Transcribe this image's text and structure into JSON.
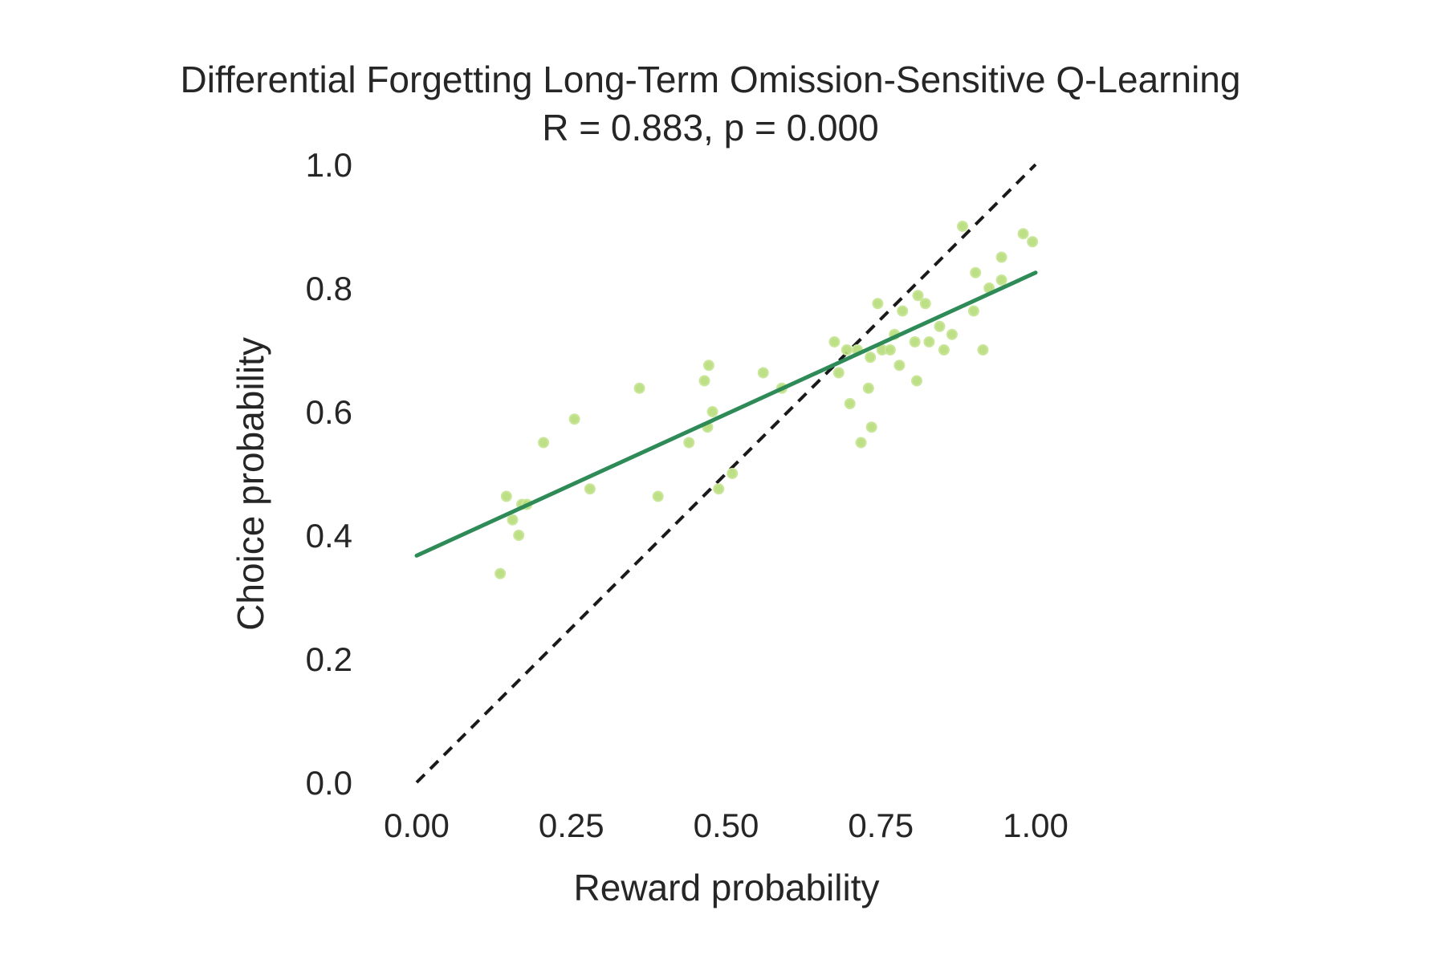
{
  "chart_data": {
    "type": "scatter",
    "title": "Differential Forgetting Long-Term Omission-Sensitive Q-Learning",
    "subtitle": "R = 0.883, p = 0.000",
    "xlabel": "Reward probability",
    "ylabel": "Choice probability",
    "xlim": [
      0,
      1
    ],
    "ylim": [
      0,
      1
    ],
    "grid": false,
    "x_ticks": [
      "0.00",
      "0.25",
      "0.50",
      "0.75",
      "1.00"
    ],
    "y_ticks": [
      "0.0",
      "0.2",
      "0.4",
      "0.6",
      "0.8",
      "1.0"
    ],
    "identity_line": {
      "x": [
        0,
        1
      ],
      "y": [
        0,
        1
      ],
      "style": "dashed",
      "color": "#1a1a1a"
    },
    "regression_line": {
      "x": [
        0,
        1
      ],
      "y": [
        0.367,
        0.825
      ],
      "color": "#2e8b57"
    },
    "points_color": "#b6dc78",
    "points": [
      [
        0.135,
        0.338
      ],
      [
        0.145,
        0.463
      ],
      [
        0.155,
        0.425
      ],
      [
        0.165,
        0.4
      ],
      [
        0.17,
        0.45
      ],
      [
        0.178,
        0.45
      ],
      [
        0.205,
        0.55
      ],
      [
        0.255,
        0.588
      ],
      [
        0.28,
        0.475
      ],
      [
        0.36,
        0.638
      ],
      [
        0.39,
        0.463
      ],
      [
        0.44,
        0.55
      ],
      [
        0.465,
        0.65
      ],
      [
        0.47,
        0.575
      ],
      [
        0.472,
        0.675
      ],
      [
        0.478,
        0.6
      ],
      [
        0.488,
        0.475
      ],
      [
        0.51,
        0.5
      ],
      [
        0.56,
        0.663
      ],
      [
        0.59,
        0.638
      ],
      [
        0.675,
        0.713
      ],
      [
        0.682,
        0.663
      ],
      [
        0.695,
        0.7
      ],
      [
        0.7,
        0.613
      ],
      [
        0.712,
        0.7
      ],
      [
        0.718,
        0.55
      ],
      [
        0.73,
        0.638
      ],
      [
        0.733,
        0.688
      ],
      [
        0.735,
        0.575
      ],
      [
        0.745,
        0.775
      ],
      [
        0.752,
        0.7
      ],
      [
        0.765,
        0.7
      ],
      [
        0.772,
        0.725
      ],
      [
        0.78,
        0.675
      ],
      [
        0.785,
        0.763
      ],
      [
        0.805,
        0.713
      ],
      [
        0.808,
        0.65
      ],
      [
        0.81,
        0.788
      ],
      [
        0.822,
        0.775
      ],
      [
        0.828,
        0.713
      ],
      [
        0.845,
        0.738
      ],
      [
        0.852,
        0.7
      ],
      [
        0.865,
        0.725
      ],
      [
        0.882,
        0.9
      ],
      [
        0.9,
        0.763
      ],
      [
        0.903,
        0.825
      ],
      [
        0.915,
        0.7
      ],
      [
        0.925,
        0.8
      ],
      [
        0.945,
        0.85
      ],
      [
        0.945,
        0.813
      ],
      [
        0.98,
        0.888
      ],
      [
        0.995,
        0.875
      ]
    ]
  }
}
